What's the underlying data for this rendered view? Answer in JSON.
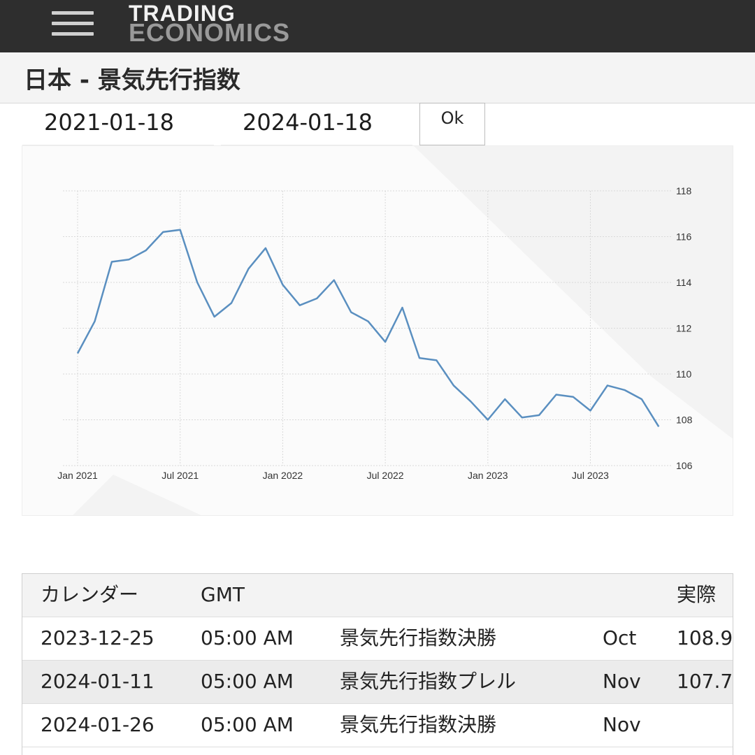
{
  "header": {
    "logo_line1": "TRADING",
    "logo_line2": "ECONOMICS"
  },
  "page": {
    "title": "日本 - 景気先行指数"
  },
  "date_range": {
    "start": "2021-01-18",
    "end": "2024-01-18",
    "ok_label": "Ok"
  },
  "chart_data": {
    "type": "line",
    "x_tick_labels": [
      "Jan 2021",
      "Jul 2021",
      "Jan 2022",
      "Jul 2022",
      "Jan 2023",
      "Jul 2023"
    ],
    "y_tick_labels": [
      "118",
      "116",
      "114",
      "112",
      "110",
      "108",
      "106"
    ],
    "ylim": [
      106,
      118
    ],
    "grid": true,
    "y_axis_side": "right",
    "line_color": "#5a8fc0",
    "series": [
      {
        "x": [
          "2021-01",
          "2021-02",
          "2021-03",
          "2021-04",
          "2021-05",
          "2021-06",
          "2021-07",
          "2021-08",
          "2021-09",
          "2021-10",
          "2021-11",
          "2021-12",
          "2022-01",
          "2022-02",
          "2022-03",
          "2022-04",
          "2022-05",
          "2022-06",
          "2022-07",
          "2022-08",
          "2022-09",
          "2022-10",
          "2022-11",
          "2022-12",
          "2023-01",
          "2023-02",
          "2023-03",
          "2023-04",
          "2023-05",
          "2023-06",
          "2023-07",
          "2023-08",
          "2023-09",
          "2023-10",
          "2023-11"
        ],
        "values": [
          110.9,
          112.3,
          114.9,
          115.0,
          115.4,
          116.2,
          116.3,
          114.0,
          112.5,
          113.1,
          114.6,
          115.5,
          113.9,
          113.0,
          113.3,
          114.1,
          112.7,
          112.3,
          111.4,
          112.9,
          110.7,
          110.6,
          109.5,
          108.8,
          108.0,
          108.9,
          108.1,
          108.2,
          109.1,
          109.0,
          108.4,
          109.5,
          109.3,
          108.9,
          107.7
        ]
      }
    ]
  },
  "calendar": {
    "headers": {
      "date": "カレンダー",
      "time": "GMT",
      "event": "",
      "reference": "",
      "actual": "実際"
    },
    "rows": [
      {
        "date": "2023-12-25",
        "time": "05:00 AM",
        "event": "景気先行指数決勝",
        "reference": "Oct",
        "actual": "108.9"
      },
      {
        "date": "2024-01-11",
        "time": "05:00 AM",
        "event": "景気先行指数プレル",
        "reference": "Nov",
        "actual": "107.7"
      },
      {
        "date": "2024-01-26",
        "time": "05:00 AM",
        "event": "景気先行指数決勝",
        "reference": "Nov",
        "actual": ""
      }
    ]
  }
}
